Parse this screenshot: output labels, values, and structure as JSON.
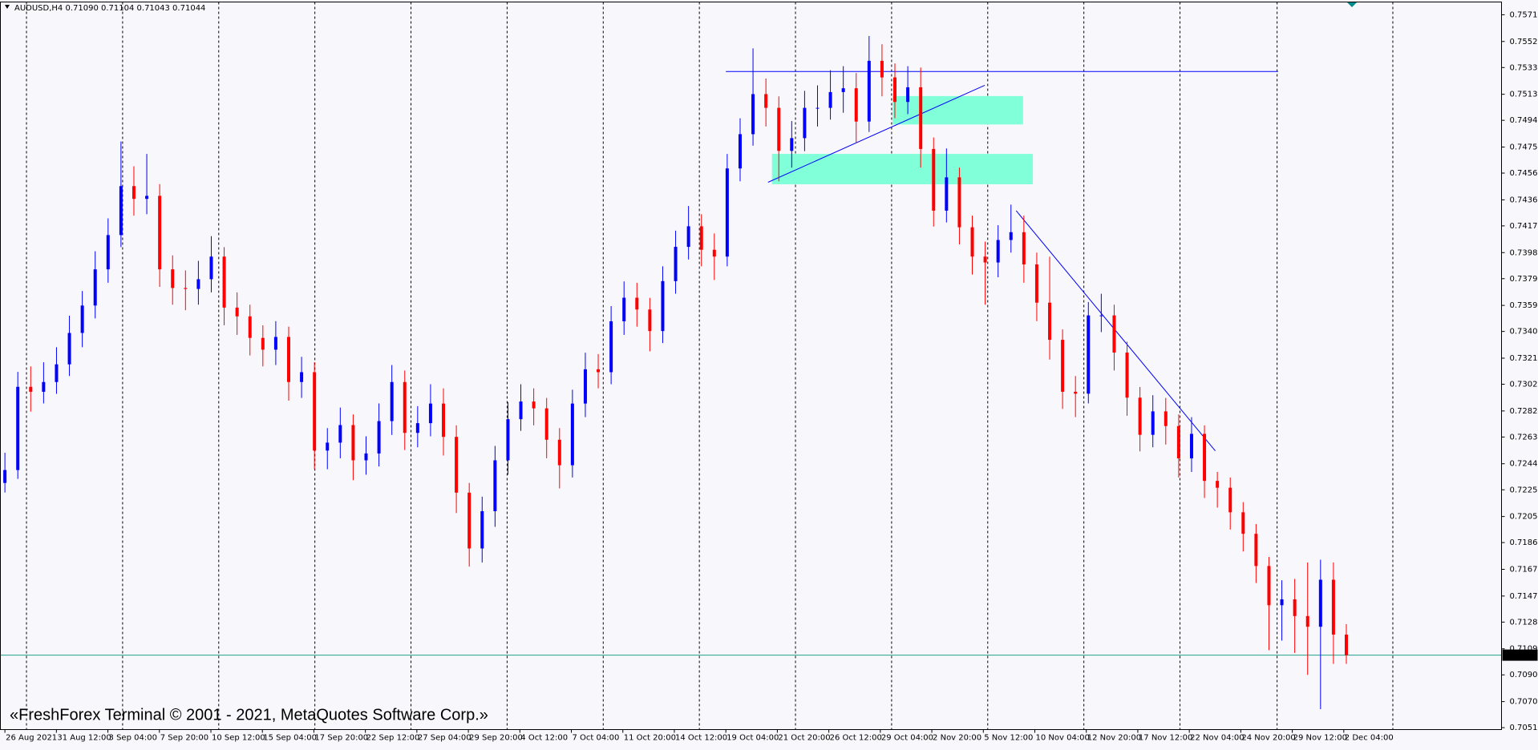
{
  "chart_data": {
    "type": "candlestick",
    "title": "AUDUSD,H4  0.71090 0.71104 0.71043 0.71044",
    "watermark": "«FreshForex Terminal © 2001 - 2021, MetaQuotes Software Corp.»",
    "up_color": "#0000ff",
    "down_color": "#ff0000",
    "ylim": [
      0.70501,
      0.75808
    ],
    "yticks": [
      0.75715,
      {
        "value": 0.7552,
        "label": "0.75520"
      },
      {
        "value": 0.7533,
        "label": "0.75330"
      },
      0.75135,
      0.74945,
      {
        "value": 0.7475,
        "label": "0.74750"
      },
      {
        "value": 0.7456,
        "label": "0.74560"
      },
      0.74365,
      0.74175,
      {
        "value": 0.7398,
        "label": "0.73980"
      },
      {
        "value": 0.7379,
        "label": "0.73790"
      },
      0.73595,
      0.73405,
      {
        "value": 0.7321,
        "label": "0.73210"
      },
      {
        "value": 0.7302,
        "label": "0.73020"
      },
      0.72825,
      0.72635,
      {
        "value": 0.7244,
        "label": "0.72440"
      },
      {
        "value": 0.7225,
        "label": "0.72250"
      },
      0.72055,
      0.71865,
      {
        "value": 0.7167,
        "label": "0.71670"
      },
      0.71475,
      0.71285,
      {
        "value": 0.7109,
        "label": "0.71090"
      },
      {
        "value": 0.709,
        "label": "0.70900"
      },
      0.70705,
      0.70515
    ],
    "time_labels": [
      "26 Aug 2021",
      "31 Aug 12:00",
      "3 Sep 04:00",
      "7 Sep 20:00",
      "10 Sep 12:00",
      "15 Sep 04:00",
      "17 Sep 20:00",
      "22 Sep 12:00",
      "27 Sep 04:00",
      "29 Sep 20:00",
      "4 Oct 12:00",
      "7 Oct 04:00",
      "11 Oct 20:00",
      "14 Oct 12:00",
      "19 Oct 04:00",
      "21 Oct 20:00",
      "26 Oct 12:00",
      "29 Oct 04:00",
      "2 Nov 20:00",
      "5 Nov 12:00",
      "10 Nov 04:00",
      "12 Nov 20:00",
      "17 Nov 12:00",
      "22 Nov 04:00",
      "24 Nov 20:00",
      "29 Nov 12:00",
      "2 Dec 04:00"
    ],
    "last_price": 0.71044,
    "open": [
      0.723,
      0.72394,
      0.73001,
      0.72965,
      0.73036,
      0.73165,
      0.73394,
      0.73594,
      0.73858,
      0.74108,
      0.74465,
      0.74372,
      0.74394,
      0.73858,
      0.73722,
      0.73715,
      0.73786,
      0.73951,
      0.73579,
      0.73515,
      0.73358,
      0.73272,
      0.73365,
      0.73036,
      0.73108,
      0.72536,
      0.72594,
      0.72722,
      0.72465,
      0.72515,
      0.72751,
      0.73036,
      0.72665,
      0.72736,
      0.72879,
      0.72636,
      0.72229,
      0.71822,
      0.72094,
      0.72465,
      0.72765,
      0.72894,
      0.72844,
      0.72615,
      0.72429,
      0.72879,
      0.73129,
      0.73108,
      0.73479,
      0.73651,
      0.73565,
      0.73408,
      0.73772,
      0.74022,
      0.74172,
      0.74001,
      0.73951,
      0.74594,
      0.74844,
      0.75136,
      0.75036,
      0.74722,
      0.74815,
      0.75036,
      0.75036,
      0.75151,
      0.75179,
      0.74936,
      0.75379,
      0.75258,
      0.75079,
      0.75186,
      0.74736,
      0.74286,
      0.74529,
      0.74165,
      0.73951,
      0.73908,
      0.74072,
      0.74129,
      0.73894,
      0.73615,
      0.73344,
      0.72965,
      0.72951,
      0.73522,
      0.73522,
      0.73251,
      0.72922,
      0.72651,
      0.72822,
      0.72715,
      0.72479,
      0.72658,
      0.72315,
      0.72265,
      0.72086,
      0.71929,
      0.71694,
      0.71408,
      0.71451,
      0.71329,
      0.71251,
      0.71594,
      0.71194
    ],
    "high": [
      0.7252,
      0.7311,
      0.7315,
      0.7318,
      0.7329,
      0.7352,
      0.737,
      0.7399,
      0.7423,
      0.7479,
      0.7461,
      0.747,
      0.7448,
      0.7396,
      0.7385,
      0.7392,
      0.741,
      0.7402,
      0.7369,
      0.736,
      0.7345,
      0.7348,
      0.7344,
      0.7322,
      0.7318,
      0.727,
      0.7285,
      0.728,
      0.7264,
      0.7288,
      0.7316,
      0.7312,
      0.7286,
      0.7302,
      0.7299,
      0.7272,
      0.723,
      0.722,
      0.7257,
      0.7289,
      0.7302,
      0.7299,
      0.7292,
      0.727,
      0.7298,
      0.7325,
      0.7324,
      0.7359,
      0.7377,
      0.7376,
      0.7365,
      0.7388,
      0.7414,
      0.7432,
      0.7426,
      0.7412,
      0.747,
      0.7496,
      0.7547,
      0.7525,
      0.7512,
      0.7494,
      0.7516,
      0.752,
      0.7531,
      0.7534,
      0.7529,
      0.7556,
      0.755,
      0.7536,
      0.7534,
      0.7533,
      0.7482,
      0.7474,
      0.746,
      0.7425,
      0.7406,
      0.7418,
      0.7433,
      0.7425,
      0.7398,
      0.7395,
      0.7342,
      0.7308,
      0.7362,
      0.7368,
      0.736,
      0.7333,
      0.73,
      0.7294,
      0.7292,
      0.728,
      0.7278,
      0.7272,
      0.7238,
      0.7234,
      0.7216,
      0.72,
      0.7176,
      0.7159,
      0.716,
      0.7172,
      0.7174,
      0.7172,
      0.7127
    ],
    "low": [
      0.7223,
      0.7233,
      0.7282,
      0.7288,
      0.7295,
      0.7308,
      0.7329,
      0.735,
      0.7376,
      0.7402,
      0.7425,
      0.7426,
      0.7373,
      0.736,
      0.7356,
      0.736,
      0.7369,
      0.7345,
      0.7338,
      0.7323,
      0.7315,
      0.7316,
      0.729,
      0.7292,
      0.724,
      0.724,
      0.7248,
      0.7232,
      0.7236,
      0.7242,
      0.7265,
      0.7254,
      0.7256,
      0.7264,
      0.725,
      0.7208,
      0.7169,
      0.7172,
      0.7198,
      0.7236,
      0.7268,
      0.7272,
      0.7248,
      0.7226,
      0.7234,
      0.7278,
      0.7299,
      0.7302,
      0.7338,
      0.7344,
      0.7326,
      0.7332,
      0.7368,
      0.7393,
      0.7388,
      0.7378,
      0.7388,
      0.745,
      0.7476,
      0.749,
      0.745,
      0.746,
      0.7472,
      0.749,
      0.7495,
      0.75,
      0.7478,
      0.7486,
      0.7512,
      0.7496,
      0.7499,
      0.746,
      0.7417,
      0.742,
      0.7404,
      0.7382,
      0.736,
      0.738,
      0.7398,
      0.7376,
      0.7348,
      0.732,
      0.7284,
      0.7278,
      0.7288,
      0.734,
      0.7312,
      0.7279,
      0.7253,
      0.7256,
      0.7258,
      0.7234,
      0.7238,
      0.7219,
      0.7212,
      0.7196,
      0.718,
      0.7157,
      0.7108,
      0.7115,
      0.7106,
      0.709,
      0.7065,
      0.7098,
      0.7098
    ],
    "close": [
      0.72394,
      0.73001,
      0.72965,
      0.73036,
      0.73165,
      0.73394,
      0.73594,
      0.73858,
      0.74108,
      0.74465,
      0.74372,
      0.74394,
      0.73858,
      0.73722,
      0.73715,
      0.73786,
      0.73951,
      0.73579,
      0.73515,
      0.73358,
      0.73272,
      0.73365,
      0.73036,
      0.73108,
      0.72536,
      0.72594,
      0.72722,
      0.72465,
      0.72515,
      0.72751,
      0.73036,
      0.72665,
      0.72736,
      0.72879,
      0.72636,
      0.72229,
      0.71822,
      0.72094,
      0.72465,
      0.72765,
      0.72894,
      0.72844,
      0.72615,
      0.72429,
      0.72879,
      0.73129,
      0.73108,
      0.73479,
      0.73651,
      0.73565,
      0.73408,
      0.73772,
      0.74022,
      0.74172,
      0.74001,
      0.73951,
      0.74594,
      0.74844,
      0.75136,
      0.75036,
      0.74722,
      0.74815,
      0.75036,
      0.75036,
      0.75151,
      0.75179,
      0.74936,
      0.75379,
      0.75258,
      0.75079,
      0.75186,
      0.74736,
      0.74286,
      0.74529,
      0.74165,
      0.73951,
      0.73908,
      0.74072,
      0.74129,
      0.73894,
      0.73615,
      0.73344,
      0.72965,
      0.72951,
      0.73522,
      0.73522,
      0.73251,
      0.72922,
      0.72651,
      0.72822,
      0.72715,
      0.72479,
      0.72658,
      0.72315,
      0.72265,
      0.72086,
      0.71929,
      0.71694,
      0.71408,
      0.71451,
      0.71329,
      0.71251,
      0.71594,
      0.71194,
      0.71044
    ]
  }
}
